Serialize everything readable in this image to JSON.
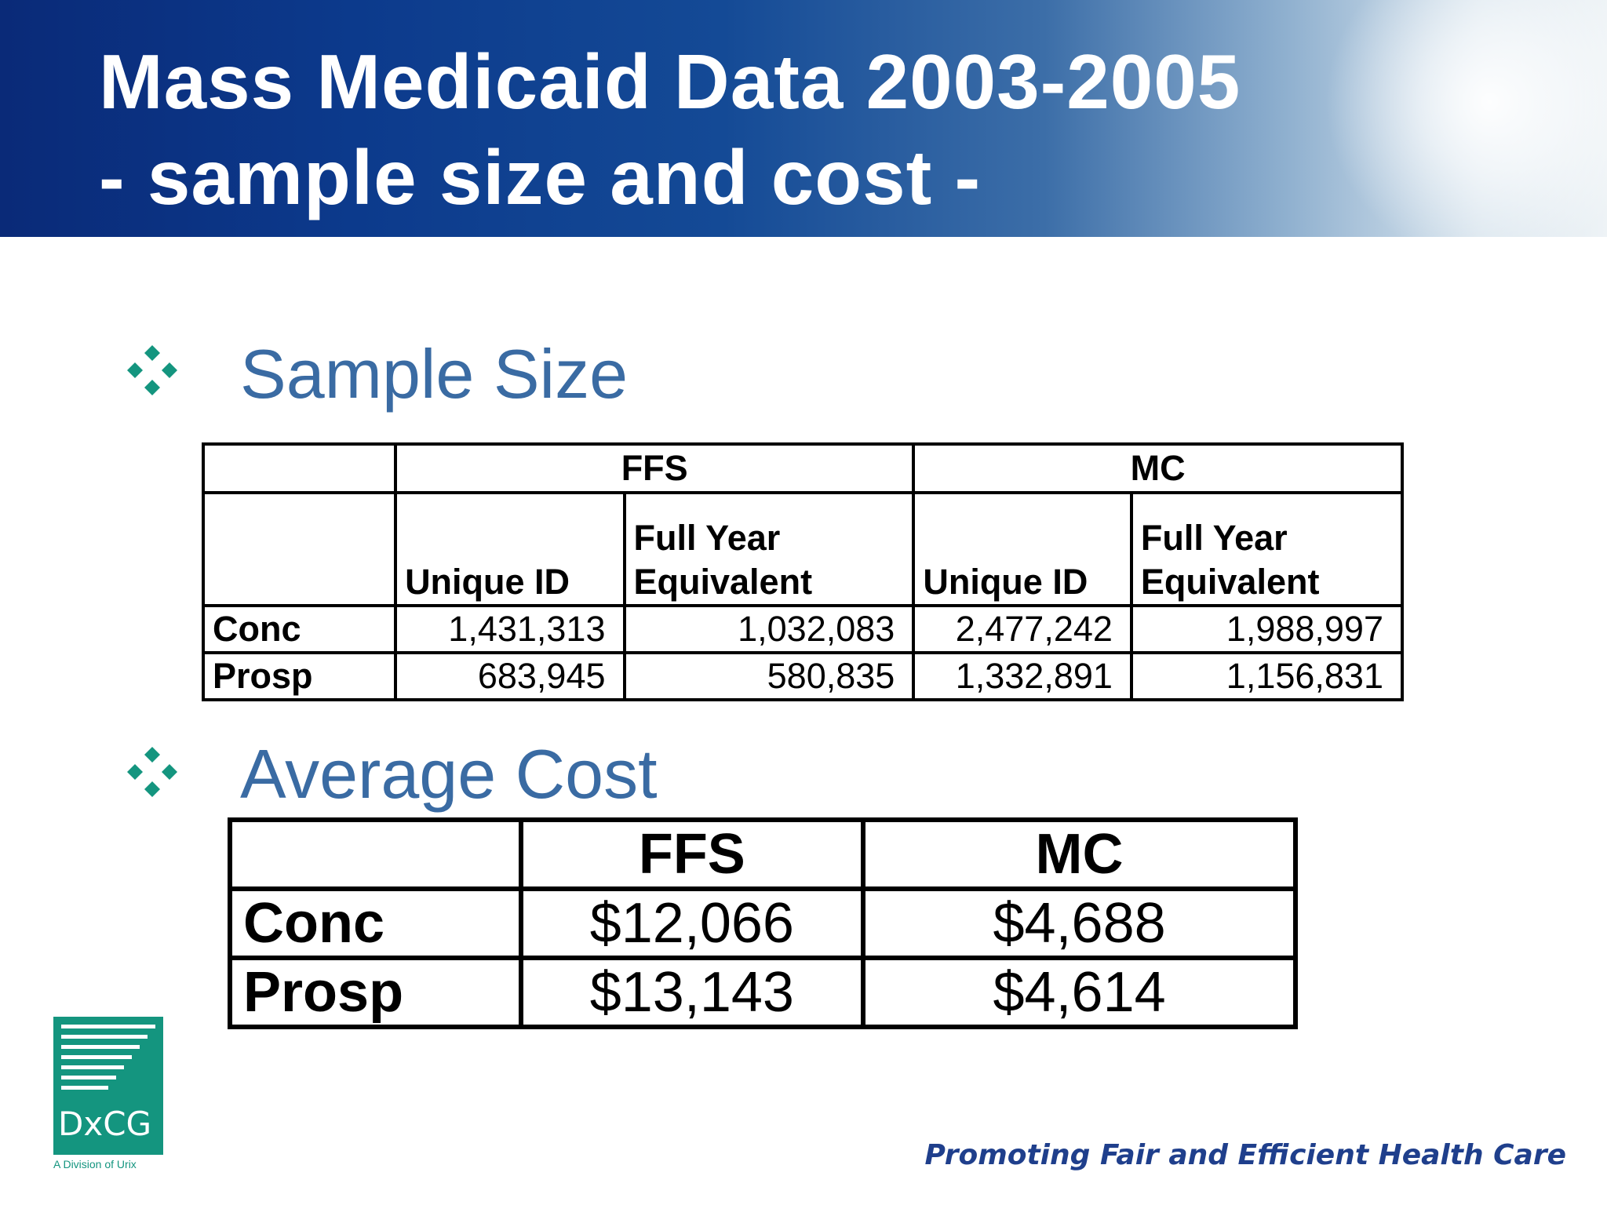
{
  "slide": {
    "title_line1": "Mass Medicaid Data 2003-2005",
    "title_line2": "- sample size and cost -"
  },
  "sample_size": {
    "heading": "Sample Size",
    "group_headers": [
      "FFS",
      "MC"
    ],
    "sub_headers": {
      "ffs_unique": "Unique ID",
      "ffs_fye_1": "Full Year",
      "ffs_fye_2": "Equivalent",
      "mc_unique": "Unique ID",
      "mc_fye_1": "Full Year",
      "mc_fye_2": "Equivalent"
    },
    "rows": [
      {
        "label": "Conc",
        "ffs_unique": "1,431,313",
        "ffs_fye": "1,032,083",
        "mc_unique": "2,477,242",
        "mc_fye": "1,988,997"
      },
      {
        "label": "Prosp",
        "ffs_unique": "683,945",
        "ffs_fye": "580,835",
        "mc_unique": "1,332,891",
        "mc_fye": "1,156,831"
      }
    ]
  },
  "average_cost": {
    "heading": "Average Cost",
    "headers": [
      "FFS",
      "MC"
    ],
    "rows": [
      {
        "label": "Conc",
        "ffs": "$12,066",
        "mc": "$4,688"
      },
      {
        "label": "Prosp",
        "ffs": "$13,143",
        "mc": "$4,614"
      }
    ]
  },
  "logo": {
    "brand": "DxCG",
    "subtitle": "A Division of Urix"
  },
  "tagline": "Promoting Fair and Efficient Health Care",
  "colors": {
    "header_blue": "#0c3a8c",
    "section_title": "#3a6ba3",
    "bullet_teal": "#14957f",
    "tagline_blue": "#1f3f8c"
  }
}
